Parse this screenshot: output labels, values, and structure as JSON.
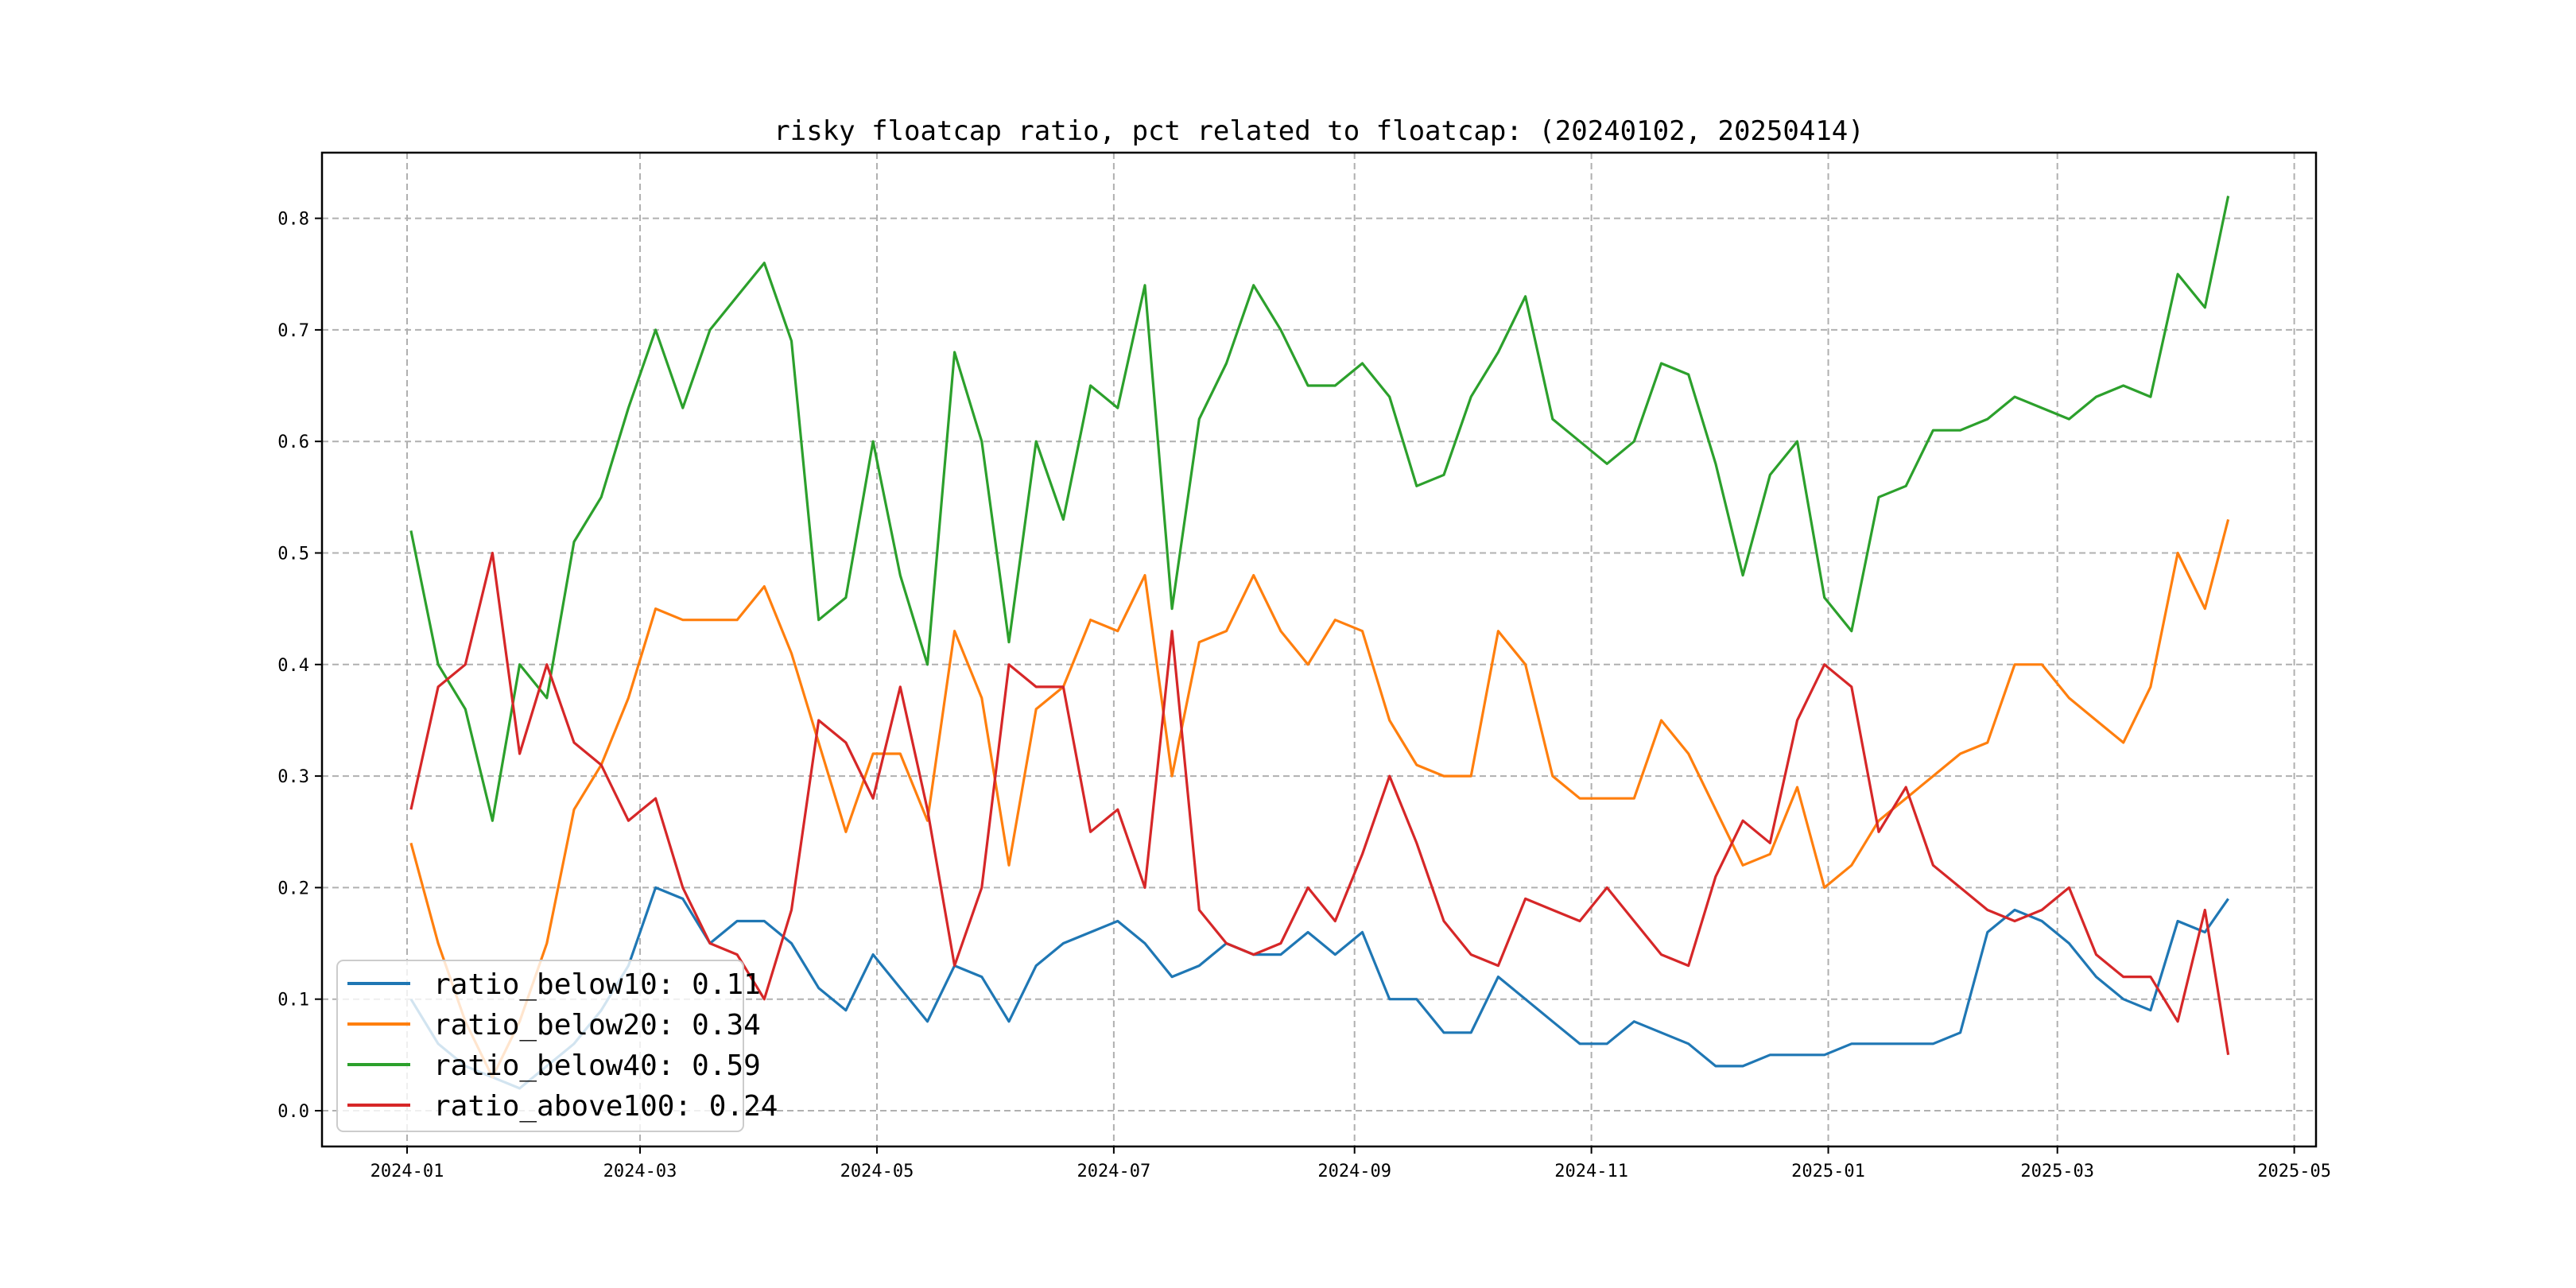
{
  "chart_data": {
    "type": "line",
    "title": "risky floatcap ratio, pct related to floatcap: (20240102, 20250414)",
    "xlabel": "",
    "ylabel": "",
    "xlim": [
      "2023-12-10",
      "2025-05-06"
    ],
    "ylim": [
      -0.035,
      0.86
    ],
    "grid": true,
    "legend_position": "lower-left",
    "x_ticks": [
      "2024-01",
      "2024-03",
      "2024-05",
      "2024-07",
      "2024-09",
      "2024-11",
      "2025-01",
      "2025-03",
      "2025-05"
    ],
    "y_ticks": [
      "0.0",
      "0.1",
      "0.2",
      "0.3",
      "0.4",
      "0.5",
      "0.6",
      "0.7",
      "0.8"
    ],
    "x": [
      "2024-01-02",
      "2024-01-09",
      "2024-01-16",
      "2024-01-23",
      "2024-01-30",
      "2024-02-06",
      "2024-02-13",
      "2024-02-20",
      "2024-02-27",
      "2024-03-05",
      "2024-03-12",
      "2024-03-19",
      "2024-03-26",
      "2024-04-02",
      "2024-04-09",
      "2024-04-16",
      "2024-04-23",
      "2024-04-30",
      "2024-05-07",
      "2024-05-14",
      "2024-05-21",
      "2024-05-28",
      "2024-06-04",
      "2024-06-11",
      "2024-06-18",
      "2024-06-25",
      "2024-07-02",
      "2024-07-09",
      "2024-07-16",
      "2024-07-23",
      "2024-07-30",
      "2024-08-06",
      "2024-08-13",
      "2024-08-20",
      "2024-08-27",
      "2024-09-03",
      "2024-09-10",
      "2024-09-17",
      "2024-09-24",
      "2024-10-01",
      "2024-10-08",
      "2024-10-15",
      "2024-10-22",
      "2024-10-29",
      "2024-11-05",
      "2024-11-12",
      "2024-11-19",
      "2024-11-26",
      "2024-12-03",
      "2024-12-10",
      "2024-12-17",
      "2024-12-24",
      "2024-12-31",
      "2025-01-07",
      "2025-01-14",
      "2025-01-21",
      "2025-01-28",
      "2025-02-04",
      "2025-02-11",
      "2025-02-18",
      "2025-02-25",
      "2025-03-04",
      "2025-03-11",
      "2025-03-18",
      "2025-03-25",
      "2025-04-01",
      "2025-04-08",
      "2025-04-14"
    ],
    "series": [
      {
        "name": "ratio_below10",
        "legend": "ratio_below10: 0.11",
        "color": "#1f77b4",
        "values": [
          0.1,
          0.06,
          0.04,
          0.03,
          0.02,
          0.04,
          0.06,
          0.09,
          0.13,
          0.2,
          0.19,
          0.15,
          0.17,
          0.17,
          0.15,
          0.11,
          0.09,
          0.14,
          0.11,
          0.08,
          0.13,
          0.12,
          0.08,
          0.13,
          0.15,
          0.16,
          0.17,
          0.15,
          0.12,
          0.13,
          0.15,
          0.14,
          0.14,
          0.16,
          0.14,
          0.16,
          0.1,
          0.1,
          0.07,
          0.07,
          0.12,
          0.1,
          0.08,
          0.06,
          0.06,
          0.08,
          0.07,
          0.06,
          0.04,
          0.04,
          0.05,
          0.05,
          0.05,
          0.06,
          0.06,
          0.06,
          0.06,
          0.07,
          0.16,
          0.18,
          0.17,
          0.15,
          0.12,
          0.1,
          0.09,
          0.17,
          0.16,
          0.19
        ]
      },
      {
        "name": "ratio_below20",
        "legend": "ratio_below20: 0.34",
        "color": "#ff7f0e",
        "values": [
          0.24,
          0.15,
          0.08,
          0.03,
          0.08,
          0.15,
          0.27,
          0.31,
          0.37,
          0.45,
          0.44,
          0.44,
          0.44,
          0.47,
          0.41,
          0.33,
          0.25,
          0.32,
          0.32,
          0.26,
          0.43,
          0.37,
          0.22,
          0.36,
          0.38,
          0.44,
          0.43,
          0.48,
          0.3,
          0.42,
          0.43,
          0.48,
          0.43,
          0.4,
          0.44,
          0.43,
          0.35,
          0.31,
          0.3,
          0.3,
          0.43,
          0.4,
          0.3,
          0.28,
          0.28,
          0.28,
          0.35,
          0.32,
          0.27,
          0.22,
          0.23,
          0.29,
          0.2,
          0.22,
          0.26,
          0.28,
          0.3,
          0.32,
          0.33,
          0.4,
          0.4,
          0.37,
          0.35,
          0.33,
          0.38,
          0.5,
          0.45,
          0.53
        ]
      },
      {
        "name": "ratio_below40",
        "legend": "ratio_below40: 0.59",
        "color": "#2ca02c",
        "values": [
          0.52,
          0.4,
          0.36,
          0.26,
          0.4,
          0.37,
          0.51,
          0.55,
          0.63,
          0.7,
          0.63,
          0.7,
          0.73,
          0.76,
          0.69,
          0.44,
          0.46,
          0.6,
          0.48,
          0.4,
          0.68,
          0.6,
          0.42,
          0.6,
          0.53,
          0.65,
          0.63,
          0.74,
          0.45,
          0.62,
          0.67,
          0.74,
          0.7,
          0.65,
          0.65,
          0.67,
          0.64,
          0.56,
          0.57,
          0.64,
          0.68,
          0.73,
          0.62,
          0.6,
          0.58,
          0.6,
          0.67,
          0.66,
          0.58,
          0.48,
          0.57,
          0.6,
          0.46,
          0.43,
          0.55,
          0.56,
          0.61,
          0.61,
          0.62,
          0.64,
          0.63,
          0.62,
          0.64,
          0.65,
          0.64,
          0.75,
          0.72,
          0.82
        ]
      },
      {
        "name": "ratio_above100",
        "legend": "ratio_above100: 0.24",
        "color": "#d62728",
        "values": [
          0.27,
          0.38,
          0.4,
          0.5,
          0.32,
          0.4,
          0.33,
          0.31,
          0.26,
          0.28,
          0.2,
          0.15,
          0.14,
          0.1,
          0.18,
          0.35,
          0.33,
          0.28,
          0.38,
          0.27,
          0.13,
          0.2,
          0.4,
          0.38,
          0.38,
          0.25,
          0.27,
          0.2,
          0.43,
          0.18,
          0.15,
          0.14,
          0.15,
          0.2,
          0.17,
          0.23,
          0.3,
          0.24,
          0.17,
          0.14,
          0.13,
          0.19,
          0.18,
          0.17,
          0.2,
          0.17,
          0.14,
          0.13,
          0.21,
          0.26,
          0.24,
          0.35,
          0.4,
          0.38,
          0.25,
          0.29,
          0.22,
          0.2,
          0.18,
          0.17,
          0.18,
          0.2,
          0.14,
          0.12,
          0.12,
          0.08,
          0.18,
          0.05
        ]
      }
    ]
  }
}
